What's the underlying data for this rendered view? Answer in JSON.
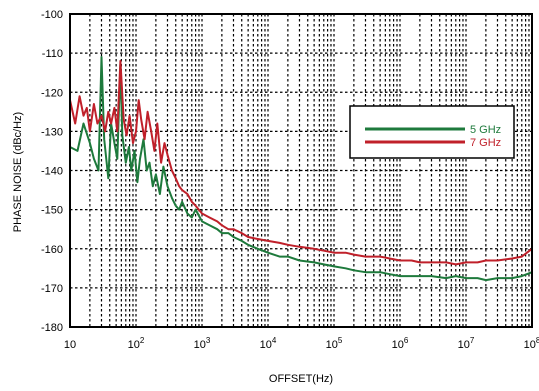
{
  "chart_data": {
    "type": "line",
    "title": "",
    "xlabel": "OFFSET(Hz)",
    "ylabel": "PHASE NOISE (dBc/Hz)",
    "x_scale": "log",
    "xlim": [
      10,
      100000000
    ],
    "ylim": [
      -180,
      -100
    ],
    "grid": true,
    "legend_position": "right-upper",
    "x_ticks": [
      {
        "base": "10",
        "exp": ""
      },
      {
        "base": "10",
        "exp": "2"
      },
      {
        "base": "10",
        "exp": "3"
      },
      {
        "base": "10",
        "exp": "4"
      },
      {
        "base": "10",
        "exp": "5"
      },
      {
        "base": "10",
        "exp": "6"
      },
      {
        "base": "10",
        "exp": "7"
      },
      {
        "base": "10",
        "exp": "8"
      }
    ],
    "y_ticks": [
      "-100",
      "-110",
      "-120",
      "-130",
      "-140",
      "-150",
      "-160",
      "-170",
      "-180"
    ],
    "series": [
      {
        "name": "5 GHz",
        "color": "#1e7a3c",
        "x": [
          10,
          13,
          16,
          20,
          23,
          27,
          30,
          33,
          38,
          42,
          47,
          52,
          58,
          62,
          70,
          78,
          85,
          95,
          105,
          115,
          130,
          145,
          160,
          180,
          200,
          230,
          260,
          300,
          350,
          400,
          450,
          500,
          600,
          700,
          800,
          1000,
          1300,
          1700,
          2000,
          2500,
          3000,
          4000,
          5000,
          7000,
          10000,
          15000,
          20000,
          30000,
          50000,
          70000,
          100000,
          150000,
          200000,
          300000,
          500000,
          700000,
          1000000,
          1500000,
          2000000,
          3000000,
          5000000,
          7000000,
          10000000,
          15000000,
          20000000,
          30000000,
          50000000,
          70000000,
          100000000
        ],
        "y": [
          -134,
          -135,
          -128,
          -133,
          -137,
          -140,
          -111,
          -132,
          -142,
          -128,
          -133,
          -137,
          -113,
          -131,
          -138,
          -134,
          -140,
          -135,
          -143,
          -137,
          -132,
          -140,
          -138,
          -144,
          -141,
          -146,
          -139,
          -144,
          -147,
          -149,
          -150,
          -148,
          -151,
          -152,
          -150,
          -153,
          -154,
          -155,
          -156,
          -156,
          -157,
          -158,
          -159,
          -160,
          -161,
          -162,
          -162,
          -163,
          -163.5,
          -164,
          -164.5,
          -165,
          -165.5,
          -166,
          -166,
          -166.5,
          -167,
          -167,
          -167,
          -167,
          -167.5,
          -167,
          -167.5,
          -167.5,
          -168,
          -167.5,
          -167.5,
          -167,
          -166
        ]
      },
      {
        "name": "7 GHz",
        "color": "#c0202a",
        "x": [
          10,
          12,
          14,
          16,
          18,
          20,
          23,
          26,
          30,
          34,
          38,
          42,
          47,
          52,
          58,
          65,
          72,
          80,
          90,
          100,
          110,
          120,
          135,
          150,
          170,
          190,
          210,
          240,
          270,
          300,
          350,
          400,
          450,
          500,
          600,
          700,
          800,
          1000,
          1300,
          1700,
          2000,
          2500,
          3000,
          4000,
          5000,
          7000,
          10000,
          15000,
          20000,
          30000,
          50000,
          70000,
          100000,
          150000,
          200000,
          300000,
          500000,
          700000,
          1000000,
          1500000,
          2000000,
          3000000,
          5000000,
          7000000,
          10000000,
          15000000,
          20000000,
          30000000,
          50000000,
          70000000,
          100000000
        ],
        "y": [
          -122,
          -128,
          -121,
          -126,
          -124,
          -130,
          -123,
          -128,
          -126,
          -130,
          -125,
          -128,
          -124,
          -130,
          -112,
          -127,
          -131,
          -126,
          -133,
          -130,
          -122,
          -127,
          -132,
          -125,
          -130,
          -135,
          -128,
          -138,
          -133,
          -136,
          -140,
          -142,
          -144,
          -145,
          -146,
          -148,
          -149,
          -151,
          -152,
          -153,
          -154,
          -155,
          -155,
          -156,
          -157,
          -157.5,
          -158,
          -158.5,
          -159,
          -159.5,
          -160,
          -160.5,
          -161,
          -161,
          -161.5,
          -162,
          -162,
          -162.5,
          -163,
          -163,
          -163.5,
          -163.5,
          -163.5,
          -164,
          -163.5,
          -163.5,
          -163,
          -163,
          -162.5,
          -162,
          -160
        ]
      }
    ]
  }
}
